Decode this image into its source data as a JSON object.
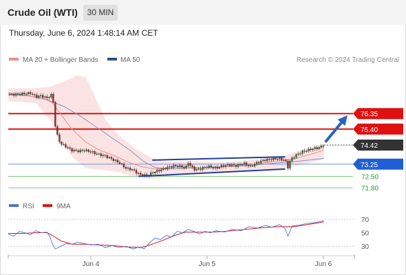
{
  "header": {
    "title": "Crude Oil (WTI)",
    "timeframe": "30 MIN"
  },
  "timestamp": "Thursday, June 6, 2024 1:48:14 AM CET",
  "legend": {
    "ma20": {
      "label": "MA 20 + Bollinger Bands",
      "color": "#f08a8a"
    },
    "ma50": {
      "label": "MA 50",
      "color": "#2b4f8f"
    }
  },
  "credit": "Research © 2024 Trading Central",
  "rsi_legend": {
    "rsi": {
      "label": "RSI",
      "color": "#4a72d9"
    },
    "ma9": {
      "label": "9MA",
      "color": "#e01010"
    }
  },
  "chart_data": [
    {
      "type": "candlestick",
      "ylim": [
        71.3,
        79.1
      ],
      "x_ticks": [
        "Jun 4",
        "Jun 5",
        "Jun 6"
      ],
      "levels": [
        {
          "value": 76.35,
          "label": "76.35",
          "kind": "resistance",
          "color": "#e01010"
        },
        {
          "value": 75.4,
          "label": "75.40",
          "kind": "resistance",
          "color": "#e01010"
        },
        {
          "value": 74.42,
          "label": "74.42",
          "kind": "last-price",
          "color": "#333333"
        },
        {
          "value": 73.25,
          "label": "73.25",
          "kind": "pivot",
          "color": "#1f5fd6"
        },
        {
          "value": 72.5,
          "label": "72.50",
          "kind": "support",
          "color": "#2f9a2f"
        },
        {
          "value": 71.8,
          "label": "71.80",
          "kind": "support",
          "color": "#2f9a2f"
        }
      ],
      "price_path": [
        [
          0,
          77.5
        ],
        [
          8,
          77.55
        ],
        [
          16,
          77.6
        ],
        [
          20,
          77.4
        ],
        [
          24,
          77.45
        ],
        [
          28,
          77.3
        ],
        [
          32,
          77.55
        ],
        [
          34,
          75.6
        ],
        [
          36,
          74.8
        ],
        [
          38,
          74.5
        ],
        [
          42,
          74.3
        ],
        [
          46,
          74.1
        ],
        [
          50,
          74.05
        ],
        [
          55,
          74.1
        ],
        [
          60,
          74.0
        ],
        [
          65,
          73.85
        ],
        [
          70,
          73.75
        ],
        [
          75,
          73.55
        ],
        [
          80,
          73.35
        ],
        [
          85,
          73.0
        ],
        [
          90,
          72.9
        ],
        [
          95,
          72.6
        ],
        [
          100,
          72.55
        ],
        [
          105,
          72.75
        ],
        [
          110,
          72.9
        ],
        [
          115,
          73.05
        ],
        [
          120,
          73.15
        ],
        [
          125,
          73.1
        ],
        [
          128,
          73.0
        ],
        [
          130,
          73.35
        ],
        [
          132,
          73.1
        ],
        [
          135,
          72.9
        ],
        [
          140,
          73.0
        ],
        [
          145,
          73.1
        ],
        [
          150,
          73.0
        ],
        [
          155,
          73.15
        ],
        [
          160,
          73.2
        ],
        [
          165,
          73.15
        ],
        [
          170,
          73.3
        ],
        [
          175,
          73.1
        ],
        [
          180,
          73.35
        ],
        [
          185,
          73.5
        ],
        [
          190,
          73.55
        ],
        [
          195,
          73.6
        ],
        [
          200,
          73.5
        ],
        [
          202,
          73.05
        ],
        [
          204,
          73.55
        ],
        [
          208,
          73.8
        ],
        [
          212,
          74.0
        ],
        [
          216,
          74.1
        ],
        [
          220,
          74.2
        ],
        [
          224,
          74.25
        ],
        [
          228,
          74.4
        ]
      ],
      "ma20_path": [
        [
          0,
          77.5
        ],
        [
          12,
          77.45
        ],
        [
          24,
          77.35
        ],
        [
          32,
          77.0
        ],
        [
          38,
          76.3
        ],
        [
          46,
          75.4
        ],
        [
          56,
          74.6
        ],
        [
          66,
          74.1
        ],
        [
          76,
          73.8
        ],
        [
          86,
          73.4
        ],
        [
          96,
          73.1
        ],
        [
          106,
          72.95
        ],
        [
          116,
          73.0
        ],
        [
          126,
          73.1
        ],
        [
          136,
          73.05
        ],
        [
          146,
          73.05
        ],
        [
          156,
          73.1
        ],
        [
          166,
          73.15
        ],
        [
          176,
          73.2
        ],
        [
          186,
          73.35
        ],
        [
          196,
          73.45
        ],
        [
          206,
          73.55
        ],
        [
          216,
          73.8
        ],
        [
          228,
          74.1
        ]
      ],
      "ma50_path": [
        [
          0,
          77.6
        ],
        [
          14,
          77.45
        ],
        [
          28,
          77.2
        ],
        [
          40,
          76.8
        ],
        [
          52,
          76.2
        ],
        [
          64,
          75.5
        ],
        [
          76,
          74.8
        ],
        [
          88,
          74.1
        ],
        [
          98,
          73.4
        ],
        [
          106,
          73.05
        ],
        [
          116,
          72.95
        ],
        [
          126,
          73.0
        ],
        [
          140,
          73.05
        ],
        [
          156,
          73.1
        ],
        [
          170,
          73.15
        ],
        [
          184,
          73.25
        ],
        [
          198,
          73.35
        ],
        [
          212,
          73.45
        ],
        [
          228,
          73.6
        ]
      ],
      "bollinger_upper": [
        [
          0,
          77.9
        ],
        [
          18,
          77.9
        ],
        [
          30,
          78.0
        ],
        [
          40,
          78.3
        ],
        [
          50,
          78.7
        ],
        [
          56,
          78.6
        ],
        [
          62,
          77.5
        ],
        [
          70,
          76.0
        ],
        [
          80,
          75.0
        ],
        [
          92,
          74.2
        ],
        [
          104,
          73.6
        ],
        [
          116,
          73.4
        ],
        [
          130,
          73.45
        ],
        [
          150,
          73.35
        ],
        [
          170,
          73.45
        ],
        [
          186,
          73.6
        ],
        [
          200,
          73.8
        ],
        [
          214,
          74.2
        ],
        [
          228,
          74.5
        ]
      ],
      "bollinger_lower": [
        [
          0,
          77.1
        ],
        [
          20,
          77.0
        ],
        [
          30,
          76.0
        ],
        [
          38,
          74.7
        ],
        [
          46,
          73.7
        ],
        [
          56,
          73.0
        ],
        [
          66,
          72.9
        ],
        [
          78,
          72.8
        ],
        [
          90,
          72.5
        ],
        [
          104,
          72.35
        ],
        [
          118,
          72.55
        ],
        [
          132,
          72.7
        ],
        [
          150,
          72.75
        ],
        [
          170,
          72.85
        ],
        [
          186,
          72.9
        ],
        [
          200,
          73.0
        ],
        [
          214,
          73.25
        ],
        [
          228,
          73.55
        ]
      ],
      "channel": {
        "upper": [
          [
            104,
            73.5
          ],
          [
            200,
            73.7
          ]
        ],
        "lower": [
          [
            94,
            72.5
          ],
          [
            200,
            72.95
          ]
        ],
        "color": "#1f3f9a"
      },
      "forecast_arrow": {
        "from": [
          229,
          74.6
        ],
        "to": [
          245,
          76.25
        ],
        "color": "#2a64b8"
      },
      "x_range": [
        0,
        250
      ]
    },
    {
      "type": "line",
      "name": "RSI",
      "ylim": [
        20,
        75
      ],
      "y_ticks": [
        30,
        50,
        70
      ],
      "rsi_path": [
        [
          0,
          48
        ],
        [
          4,
          45
        ],
        [
          8,
          52
        ],
        [
          12,
          50
        ],
        [
          16,
          47
        ],
        [
          20,
          53
        ],
        [
          24,
          50
        ],
        [
          28,
          51
        ],
        [
          30,
          44
        ],
        [
          32,
          33
        ],
        [
          34,
          26
        ],
        [
          38,
          30
        ],
        [
          42,
          34
        ],
        [
          46,
          33
        ],
        [
          50,
          36
        ],
        [
          55,
          34
        ],
        [
          60,
          32
        ],
        [
          65,
          33
        ],
        [
          70,
          28
        ],
        [
          75,
          31
        ],
        [
          80,
          28
        ],
        [
          85,
          30
        ],
        [
          90,
          26
        ],
        [
          95,
          29
        ],
        [
          98,
          26
        ],
        [
          102,
          35
        ],
        [
          106,
          42
        ],
        [
          110,
          40
        ],
        [
          114,
          46
        ],
        [
          118,
          44
        ],
        [
          122,
          52
        ],
        [
          126,
          50
        ],
        [
          130,
          55
        ],
        [
          134,
          52
        ],
        [
          138,
          48
        ],
        [
          142,
          52
        ],
        [
          146,
          50
        ],
        [
          150,
          53
        ],
        [
          156,
          51
        ],
        [
          162,
          55
        ],
        [
          168,
          53
        ],
        [
          174,
          59
        ],
        [
          180,
          57
        ],
        [
          186,
          61
        ],
        [
          190,
          58
        ],
        [
          196,
          62
        ],
        [
          200,
          56
        ],
        [
          202,
          45
        ],
        [
          205,
          60
        ],
        [
          210,
          61
        ],
        [
          216,
          64
        ],
        [
          222,
          65
        ],
        [
          228,
          68
        ]
      ],
      "ma9_path": [
        [
          0,
          49
        ],
        [
          10,
          49
        ],
        [
          20,
          50
        ],
        [
          28,
          50
        ],
        [
          32,
          46
        ],
        [
          38,
          38
        ],
        [
          46,
          33
        ],
        [
          56,
          33
        ],
        [
          66,
          32
        ],
        [
          76,
          31
        ],
        [
          86,
          29
        ],
        [
          96,
          28
        ],
        [
          104,
          33
        ],
        [
          112,
          39
        ],
        [
          120,
          46
        ],
        [
          128,
          51
        ],
        [
          136,
          51
        ],
        [
          146,
          51
        ],
        [
          156,
          52
        ],
        [
          166,
          54
        ],
        [
          176,
          56
        ],
        [
          186,
          58
        ],
        [
          196,
          59
        ],
        [
          206,
          59
        ],
        [
          216,
          62
        ],
        [
          228,
          66
        ]
      ]
    }
  ]
}
